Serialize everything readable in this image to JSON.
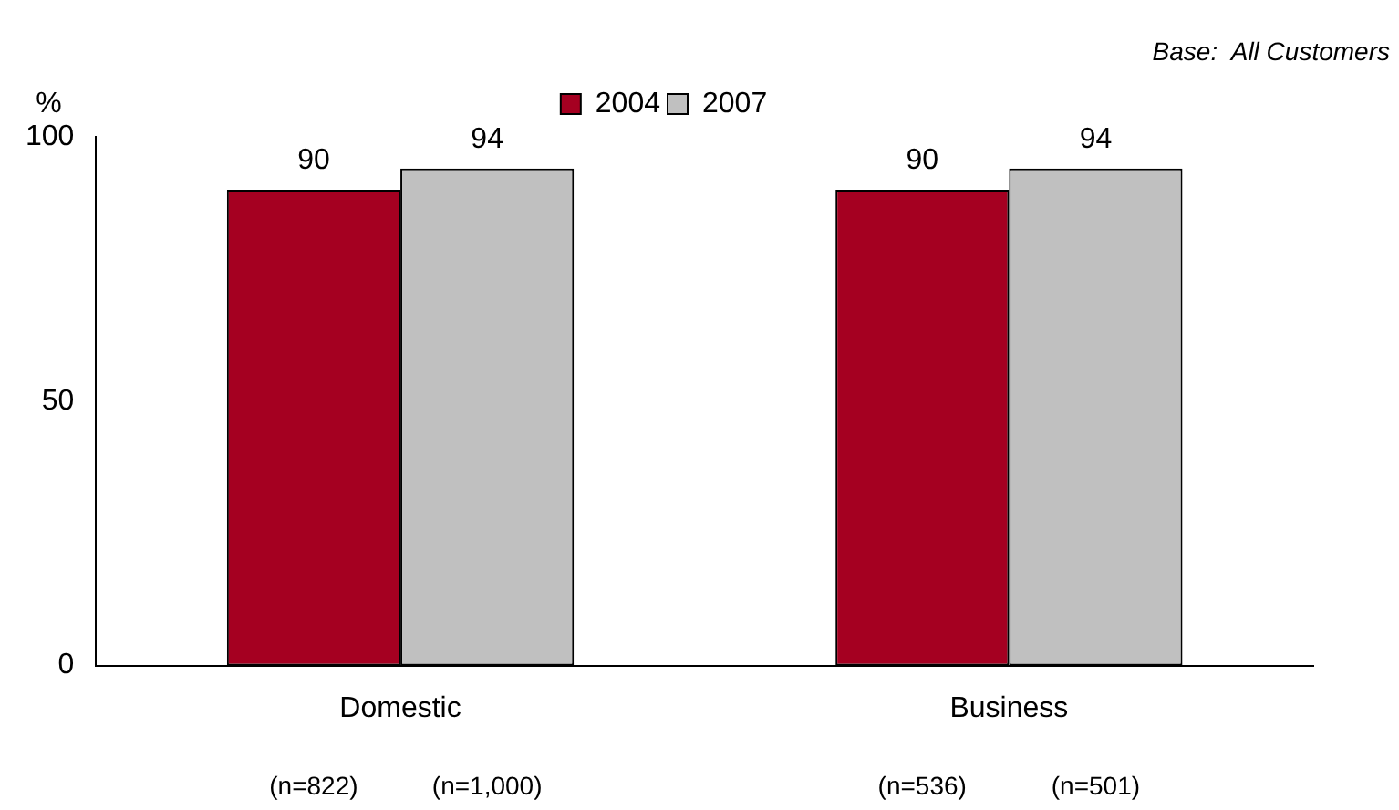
{
  "chart_data": {
    "type": "bar",
    "ylabel": "%",
    "categories": [
      "Domestic",
      "Business"
    ],
    "series": [
      {
        "name": "2004",
        "color": "#a50021",
        "values": [
          90,
          90
        ]
      },
      {
        "name": "2007",
        "color": "#c0c0c0",
        "values": [
          94,
          94
        ]
      }
    ],
    "ylim": [
      0,
      100
    ],
    "yticks": [
      0,
      50,
      100
    ],
    "grid": false,
    "legend": "top",
    "data_labels": true,
    "annotations": [
      "Base:  All Customers",
      "(n=822)",
      "(n=1,000)",
      "(n=536)",
      "(n=501)"
    ]
  }
}
